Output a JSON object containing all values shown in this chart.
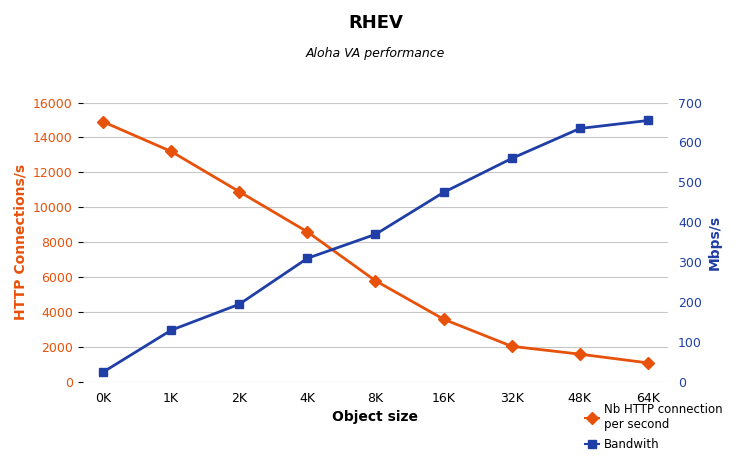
{
  "title": "RHEV",
  "subtitle": "Aloha VA performance",
  "xlabel": "Object size",
  "ylabel_left": "HTTP Connections/s",
  "ylabel_right": "Mbps/s",
  "x_labels": [
    "0K",
    "1K",
    "2K",
    "4K",
    "8K",
    "16K",
    "32K",
    "48K",
    "64K"
  ],
  "x_values": [
    0,
    1,
    2,
    3,
    4,
    5,
    6,
    7,
    8
  ],
  "connections": [
    14900,
    13200,
    10900,
    8600,
    5800,
    3600,
    2050,
    1600,
    1100
  ],
  "bandwidth": [
    25,
    130,
    195,
    310,
    370,
    475,
    560,
    635,
    655
  ],
  "connections_color": "#e8510a",
  "bandwidth_color": "#1f3ea6",
  "ylim_left": [
    0,
    16000
  ],
  "ylim_right": [
    0,
    700
  ],
  "yticks_left": [
    0,
    2000,
    4000,
    6000,
    8000,
    10000,
    12000,
    14000,
    16000
  ],
  "yticks_right": [
    0,
    100,
    200,
    300,
    400,
    500,
    600,
    700
  ],
  "legend_connections": "Nb HTTP connection\nper second",
  "legend_bandwidth": "Bandwith",
  "background_color": "#ffffff",
  "grid_color": "#c8c8c8"
}
